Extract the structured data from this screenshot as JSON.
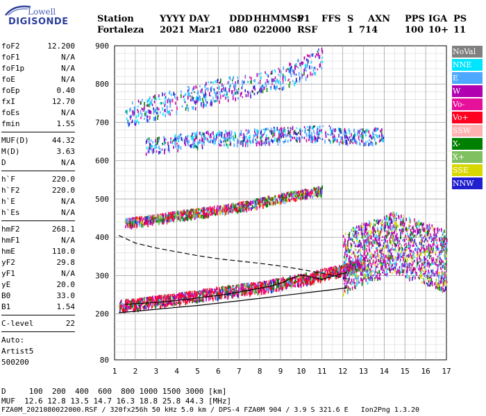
{
  "logo": {
    "line1": "Lowell",
    "line2": "DIGISONDE"
  },
  "header": {
    "row1": [
      "Station",
      "YYYY",
      "DAY",
      "DDD",
      "HHMMSS",
      "P1",
      "FFS",
      "S",
      "AXN",
      "PPS",
      "IGA",
      "PS"
    ],
    "row2": [
      "Fortaleza",
      "2021",
      "Mar21",
      "080",
      "022000",
      "RSF",
      "1",
      "714",
      "100",
      "10+",
      "11"
    ]
  },
  "parameters": [
    {
      "k": "foF2",
      "v": "12.200"
    },
    {
      "k": "foF1",
      "v": "N/A"
    },
    {
      "k": "foF1p",
      "v": "N/A"
    },
    {
      "k": "foE",
      "v": "N/A"
    },
    {
      "k": "foEp",
      "v": "0.40"
    },
    {
      "k": "fxI",
      "v": "12.70"
    },
    {
      "k": "foEs",
      "v": "N/A"
    },
    {
      "k": "fmin",
      "v": "1.55"
    },
    {
      "k": "MUF(D)",
      "v": "44.32"
    },
    {
      "k": "M(D)",
      "v": "3.63"
    },
    {
      "k": "D",
      "v": "N/A"
    },
    {
      "k": "h`F",
      "v": "220.0"
    },
    {
      "k": "h`F2",
      "v": "220.0"
    },
    {
      "k": "h`E",
      "v": "N/A"
    },
    {
      "k": "h`Es",
      "v": "N/A"
    },
    {
      "k": "hmF2",
      "v": "268.1"
    },
    {
      "k": "hmF1",
      "v": "N/A"
    },
    {
      "k": "hmE",
      "v": "110.0"
    },
    {
      "k": "yF2",
      "v": "29.8"
    },
    {
      "k": "yF1",
      "v": "N/A"
    },
    {
      "k": "yE",
      "v": "20.0"
    },
    {
      "k": "B0",
      "v": "33.0"
    },
    {
      "k": "B1",
      "v": "1.54"
    },
    {
      "k": "C-level",
      "v": "22"
    }
  ],
  "auto": {
    "line1": "Auto:",
    "line2": "Artist5",
    "line3": "500200"
  },
  "legend": [
    {
      "label": "NoVal",
      "color": "#808080"
    },
    {
      "label": "NNE",
      "color": "#00e5ff"
    },
    {
      "label": "E",
      "color": "#4fa8ff"
    },
    {
      "label": "W",
      "color": "#b000b0"
    },
    {
      "label": "Vo-",
      "color": "#e6109a"
    },
    {
      "label": "Vo+",
      "color": "#ff0020"
    },
    {
      "label": "SSW",
      "color": "#ffb0b0"
    },
    {
      "label": "X-",
      "color": "#008000"
    },
    {
      "label": "X+",
      "color": "#80c060"
    },
    {
      "label": "SSE",
      "color": "#d8d800"
    },
    {
      "label": "NNW",
      "color": "#2020d0"
    }
  ],
  "footer": {
    "d_row": "D     100  200  400  600  800 1000 1500 3000 [km]",
    "muf_row": "MUF  12.6 12.8 13.5 14.7 16.3 18.8 25.8 44.3 [MHz]",
    "file_row": "FZA0M_2021080022000.RSF / 320fx256h 50 kHz 5.0 km / DPS-4 FZA0M 904 / 3.9 S 321.6 E   Ion2Png 1.3.20"
  },
  "chart_data": {
    "type": "scatter",
    "title": "",
    "xlabel": "",
    "ylabel": "",
    "xlim": [
      1,
      17
    ],
    "ylim": [
      80,
      900
    ],
    "x_ticks": [
      1,
      2,
      3,
      4,
      5,
      6,
      7,
      8,
      9,
      10,
      11,
      12,
      13,
      14,
      15,
      16,
      17
    ],
    "y_ticks": [
      80,
      200,
      300,
      400,
      500,
      600,
      700,
      800,
      900
    ],
    "grid": true,
    "legend_position": "right",
    "series": [
      {
        "name": "trace-1F",
        "kind": "echoes",
        "x": [
          1.2,
          2.0,
          3.0,
          4.0,
          5.0,
          6.0,
          7.0,
          8.0,
          9.0,
          9.8,
          10.5,
          11.0,
          11.5,
          12.0,
          12.5,
          13.0
        ],
        "y": [
          225,
          228,
          235,
          242,
          250,
          258,
          265,
          272,
          282,
          290,
          298,
          305,
          312,
          318,
          325,
          335
        ]
      },
      {
        "name": "trace-2F",
        "kind": "echoes",
        "x": [
          1.5,
          2.5,
          3.5,
          4.5,
          5.5,
          6.5,
          7.5,
          8.5,
          9.5,
          10.5,
          11.0
        ],
        "y": [
          440,
          447,
          455,
          463,
          470,
          478,
          487,
          500,
          510,
          520,
          525
        ]
      },
      {
        "name": "trace-3F",
        "kind": "echoes",
        "x": [
          2.5,
          4.0,
          5.5,
          7.0,
          8.5,
          10.0,
          11.0,
          12.0,
          13.0,
          14.0
        ],
        "y": [
          640,
          650,
          660,
          662,
          668,
          675,
          675,
          668,
          665,
          670
        ]
      },
      {
        "name": "trace-3F-upper",
        "kind": "echoes",
        "x": [
          1.5,
          3.0,
          4.5,
          6.0,
          7.5,
          9.0,
          10.0,
          11.0
        ],
        "y": [
          720,
          745,
          765,
          785,
          800,
          820,
          840,
          870
        ]
      },
      {
        "name": "spread-F",
        "kind": "echoes",
        "x": [
          12.0,
          12.5,
          13.0,
          13.5,
          14.0,
          14.5,
          15.0,
          15.5,
          16.0,
          16.5,
          17.0
        ],
        "y": [
          330,
          350,
          360,
          370,
          380,
          390,
          380,
          370,
          360,
          350,
          340
        ]
      },
      {
        "name": "profile",
        "kind": "line",
        "style": "solid",
        "x": [
          1.2,
          3.0,
          5.0,
          7.0,
          9.0,
          11.0,
          12.2
        ],
        "y": [
          203,
          212,
          222,
          234,
          247,
          260,
          268
        ]
      },
      {
        "name": "profile-upper",
        "kind": "line",
        "style": "dashed",
        "x": [
          1.2,
          2.0,
          3.0,
          4.0,
          5.0,
          6.0,
          7.0,
          8.0,
          9.0,
          10.0,
          11.0,
          12.2
        ],
        "y": [
          405,
          385,
          372,
          362,
          352,
          344,
          338,
          332,
          325,
          316,
          306,
          292
        ]
      },
      {
        "name": "virtual-height",
        "kind": "line",
        "style": "solid",
        "x": [
          1.5,
          2.5,
          3.5,
          4.5,
          5.5,
          6.5,
          7.5,
          8.5,
          9.0,
          9.5,
          10.0,
          10.5,
          11.0,
          11.5,
          12.2
        ],
        "y": [
          225,
          228,
          232,
          238,
          245,
          252,
          262,
          272,
          280,
          292,
          302,
          296,
          290,
          298,
          308
        ]
      }
    ]
  }
}
